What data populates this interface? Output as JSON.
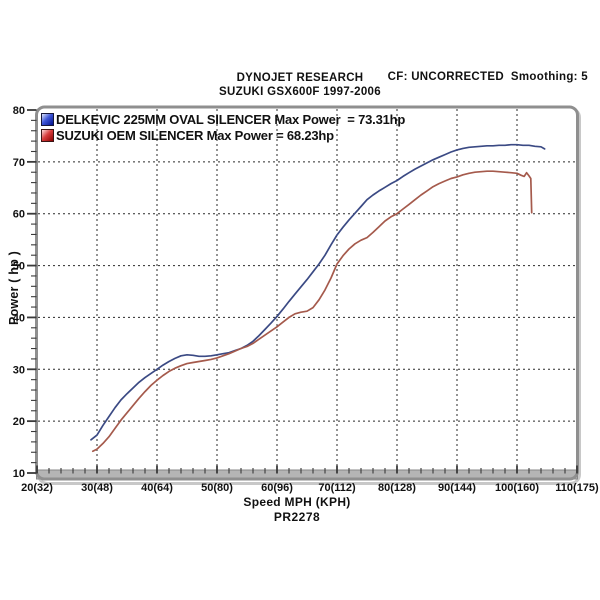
{
  "header": {
    "title": "DYNOJET RESEARCH",
    "subtitle": "SUZUKI GSX600F 1997-2006",
    "cf_note": "CF: UNCORRECTED  Smoothing: 5"
  },
  "footer": {
    "code": "PR2278"
  },
  "chart_data": {
    "type": "line",
    "title": "DYNOJET RESEARCH — SUZUKI GSX600F 1997-2006",
    "xlabel": "Speed MPH (KPH)",
    "ylabel": "Power ( hp )",
    "xlim": [
      20,
      110
    ],
    "ylim": [
      10,
      80
    ],
    "grid": "dashed",
    "x_minor_step_mph": 2,
    "y_minor_step_hp": 2,
    "x_ticks": [
      {
        "mph": 20,
        "label": "20(32)"
      },
      {
        "mph": 30,
        "label": "30(48)"
      },
      {
        "mph": 40,
        "label": "40(64)"
      },
      {
        "mph": 50,
        "label": "50(80)"
      },
      {
        "mph": 60,
        "label": "60(96)"
      },
      {
        "mph": 70,
        "label": "70(112)"
      },
      {
        "mph": 80,
        "label": "80(128)"
      },
      {
        "mph": 90,
        "label": "90(144)"
      },
      {
        "mph": 100,
        "label": "100(160)"
      },
      {
        "mph": 110,
        "label": "110(175)"
      }
    ],
    "y_ticks": [
      10,
      20,
      30,
      40,
      50,
      60,
      70,
      80
    ],
    "gridline_x_mph": [
      30,
      40,
      50,
      60,
      70,
      80,
      90,
      100
    ],
    "gridline_y_hp": [
      20,
      30,
      40,
      50,
      60,
      70
    ],
    "series": [
      {
        "name": "DELKEVIC 225MM OVAL SILENCER",
        "max_power_hp": 73.31,
        "legend": "DELKEVIC 225MM OVAL SILENCER Max Power  = 73.31hp",
        "color": "#3b4a84",
        "points": [
          [
            29,
            16.4
          ],
          [
            30,
            17.3
          ],
          [
            31,
            19.2
          ],
          [
            32,
            20.9
          ],
          [
            33,
            22.6
          ],
          [
            34,
            24.1
          ],
          [
            35,
            25.3
          ],
          [
            36,
            26.4
          ],
          [
            37,
            27.5
          ],
          [
            38,
            28.4
          ],
          [
            39,
            29.2
          ],
          [
            40,
            30.0
          ],
          [
            41,
            30.8
          ],
          [
            42,
            31.5
          ],
          [
            43,
            32.1
          ],
          [
            44,
            32.6
          ],
          [
            45,
            32.8
          ],
          [
            46,
            32.7
          ],
          [
            47,
            32.5
          ],
          [
            48,
            32.5
          ],
          [
            49,
            32.6
          ],
          [
            50,
            32.8
          ],
          [
            51,
            33.0
          ],
          [
            52,
            33.2
          ],
          [
            53,
            33.6
          ],
          [
            54,
            34.0
          ],
          [
            55,
            34.6
          ],
          [
            56,
            35.4
          ],
          [
            57,
            36.5
          ],
          [
            58,
            37.7
          ],
          [
            59,
            38.9
          ],
          [
            60,
            40.2
          ],
          [
            61,
            41.6
          ],
          [
            62,
            43.1
          ],
          [
            63,
            44.5
          ],
          [
            64,
            45.9
          ],
          [
            65,
            47.3
          ],
          [
            66,
            48.8
          ],
          [
            67,
            50.3
          ],
          [
            68,
            52.0
          ],
          [
            69,
            54.0
          ],
          [
            70,
            55.9
          ],
          [
            71,
            57.4
          ],
          [
            72,
            58.8
          ],
          [
            73,
            60.1
          ],
          [
            74,
            61.4
          ],
          [
            75,
            62.7
          ],
          [
            76,
            63.6
          ],
          [
            77,
            64.4
          ],
          [
            78,
            65.1
          ],
          [
            79,
            65.8
          ],
          [
            80,
            66.4
          ],
          [
            81,
            67.2
          ],
          [
            82,
            67.9
          ],
          [
            83,
            68.6
          ],
          [
            84,
            69.2
          ],
          [
            85,
            69.8
          ],
          [
            86,
            70.4
          ],
          [
            87,
            70.9
          ],
          [
            88,
            71.4
          ],
          [
            89,
            71.9
          ],
          [
            90,
            72.3
          ],
          [
            91,
            72.6
          ],
          [
            92,
            72.8
          ],
          [
            93,
            72.9
          ],
          [
            94,
            73.0
          ],
          [
            95,
            73.1
          ],
          [
            96,
            73.1
          ],
          [
            97,
            73.2
          ],
          [
            98,
            73.2
          ],
          [
            99,
            73.3
          ],
          [
            100,
            73.3
          ],
          [
            101,
            73.2
          ],
          [
            102,
            73.2
          ],
          [
            103,
            73.0
          ],
          [
            104,
            72.9
          ],
          [
            104.6,
            72.5
          ]
        ]
      },
      {
        "name": "SUZUKI OEM SILENCER",
        "max_power_hp": 68.23,
        "legend": "SUZUKI OEM SILENCER Max Power = 68.23hp",
        "color": "#a55a4c",
        "points": [
          [
            29.3,
            14.2
          ],
          [
            30,
            14.6
          ],
          [
            31,
            15.7
          ],
          [
            32,
            17.0
          ],
          [
            33,
            18.6
          ],
          [
            34,
            20.2
          ],
          [
            35,
            21.6
          ],
          [
            36,
            23.0
          ],
          [
            37,
            24.4
          ],
          [
            38,
            25.7
          ],
          [
            39,
            26.9
          ],
          [
            40,
            27.9
          ],
          [
            41,
            28.8
          ],
          [
            42,
            29.6
          ],
          [
            43,
            30.2
          ],
          [
            44,
            30.7
          ],
          [
            45,
            31.1
          ],
          [
            46,
            31.3
          ],
          [
            47,
            31.5
          ],
          [
            48,
            31.7
          ],
          [
            49,
            31.9
          ],
          [
            50,
            32.2
          ],
          [
            51,
            32.6
          ],
          [
            52,
            33.0
          ],
          [
            53,
            33.5
          ],
          [
            54,
            34.0
          ],
          [
            55,
            34.4
          ],
          [
            56,
            35.0
          ],
          [
            57,
            35.8
          ],
          [
            58,
            36.6
          ],
          [
            59,
            37.4
          ],
          [
            60,
            38.2
          ],
          [
            61,
            39.1
          ],
          [
            62,
            40.0
          ],
          [
            63,
            40.7
          ],
          [
            64,
            41.0
          ],
          [
            65,
            41.2
          ],
          [
            66,
            41.9
          ],
          [
            67,
            43.4
          ],
          [
            68,
            45.3
          ],
          [
            69,
            47.6
          ],
          [
            70,
            50.3
          ],
          [
            71,
            51.9
          ],
          [
            72,
            53.2
          ],
          [
            73,
            54.2
          ],
          [
            74,
            54.9
          ],
          [
            75,
            55.4
          ],
          [
            76,
            56.4
          ],
          [
            77,
            57.5
          ],
          [
            78,
            58.6
          ],
          [
            79,
            59.4
          ],
          [
            80,
            60.0
          ],
          [
            81,
            60.9
          ],
          [
            82,
            61.8
          ],
          [
            83,
            62.7
          ],
          [
            84,
            63.6
          ],
          [
            85,
            64.4
          ],
          [
            86,
            65.2
          ],
          [
            87,
            65.8
          ],
          [
            88,
            66.3
          ],
          [
            89,
            66.8
          ],
          [
            90,
            67.1
          ],
          [
            91,
            67.5
          ],
          [
            92,
            67.8
          ],
          [
            93,
            68.0
          ],
          [
            94,
            68.1
          ],
          [
            95,
            68.2
          ],
          [
            96,
            68.2
          ],
          [
            97,
            68.1
          ],
          [
            98,
            68.0
          ],
          [
            99,
            67.9
          ],
          [
            100,
            67.8
          ],
          [
            100.7,
            67.4
          ],
          [
            101.2,
            67.2
          ],
          [
            101.6,
            67.9
          ],
          [
            102.0,
            67.3
          ],
          [
            102.3,
            66.8
          ],
          [
            102.45,
            60.2
          ]
        ]
      }
    ]
  }
}
